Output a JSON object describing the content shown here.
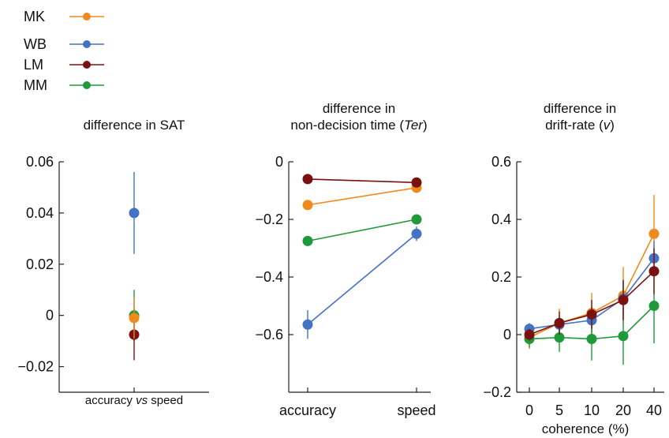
{
  "colors": {
    "MK": "#f08a1c",
    "WB": "#4472c4",
    "LM": "#7b1010",
    "MM": "#1f9a3a"
  },
  "legend": [
    "MK",
    "WB",
    "LM",
    "MM"
  ],
  "chart_data": [
    {
      "type": "scatter",
      "title": "difference in SAT",
      "xlabel_parts": [
        "accuracy ",
        "vs",
        " speed"
      ],
      "ylabel": "",
      "ylim": [
        -0.03,
        0.06
      ],
      "yticks": [
        0.06,
        0.04,
        0.02,
        0,
        -0.02
      ],
      "ytick_labels": [
        "0.06",
        "0.04",
        "0.02",
        "0",
        "−0.02"
      ],
      "series": [
        {
          "name": "MK",
          "y": -0.001,
          "err": 0.008
        },
        {
          "name": "WB",
          "y": 0.04,
          "err": 0.016
        },
        {
          "name": "LM",
          "y": -0.0075,
          "err": 0.01
        },
        {
          "name": "MM",
          "y": 0.0,
          "err": 0.01
        }
      ]
    },
    {
      "type": "line",
      "title_line1": "difference in",
      "title_line2_parts": [
        "non-decision time (",
        "Ter",
        ")"
      ],
      "categories": [
        "accuracy",
        "speed"
      ],
      "ylim": [
        -0.8,
        0.0
      ],
      "yticks": [
        0,
        -0.2,
        -0.4,
        -0.6
      ],
      "ytick_labels": [
        "0",
        "−0.2",
        "−0.4",
        "−0.6"
      ],
      "series": [
        {
          "name": "MK",
          "values": [
            -0.15,
            -0.09
          ],
          "err": [
            0.0,
            0.0
          ]
        },
        {
          "name": "WB",
          "values": [
            -0.565,
            -0.25
          ],
          "err": [
            0.05,
            0.025
          ]
        },
        {
          "name": "LM",
          "values": [
            -0.06,
            -0.072
          ],
          "err": [
            0.015,
            0.0
          ]
        },
        {
          "name": "MM",
          "values": [
            -0.275,
            -0.2
          ],
          "err": [
            0.012,
            0.0
          ]
        }
      ]
    },
    {
      "type": "line",
      "title_line1": "difference in",
      "title_line2_parts": [
        "drift-rate (",
        "v",
        ")"
      ],
      "xlabel": "coherence (%)",
      "categories": [
        "0",
        "5",
        "10",
        "20",
        "40"
      ],
      "ylim": [
        -0.2,
        0.6
      ],
      "yticks": [
        0.6,
        0.4,
        0.2,
        0,
        -0.2
      ],
      "ytick_labels": [
        "0.6",
        "0.4",
        "0.2",
        "0",
        "−0.2"
      ],
      "series": [
        {
          "name": "MK",
          "values": [
            -0.01,
            0.04,
            0.075,
            0.135,
            0.35
          ],
          "err": [
            0.04,
            0.05,
            0.07,
            0.1,
            0.135
          ]
        },
        {
          "name": "WB",
          "values": [
            0.02,
            0.035,
            0.05,
            0.125,
            0.265
          ],
          "err": [
            0.02,
            0.03,
            0.045,
            0.06,
            0.06
          ]
        },
        {
          "name": "LM",
          "values": [
            0.0,
            0.04,
            0.07,
            0.12,
            0.22
          ],
          "err": [
            0.02,
            0.04,
            0.05,
            0.07,
            0.08
          ]
        },
        {
          "name": "MM",
          "values": [
            -0.015,
            -0.01,
            -0.015,
            -0.005,
            0.1
          ],
          "err": [
            0.03,
            0.05,
            0.075,
            0.1,
            0.13
          ]
        }
      ]
    }
  ]
}
